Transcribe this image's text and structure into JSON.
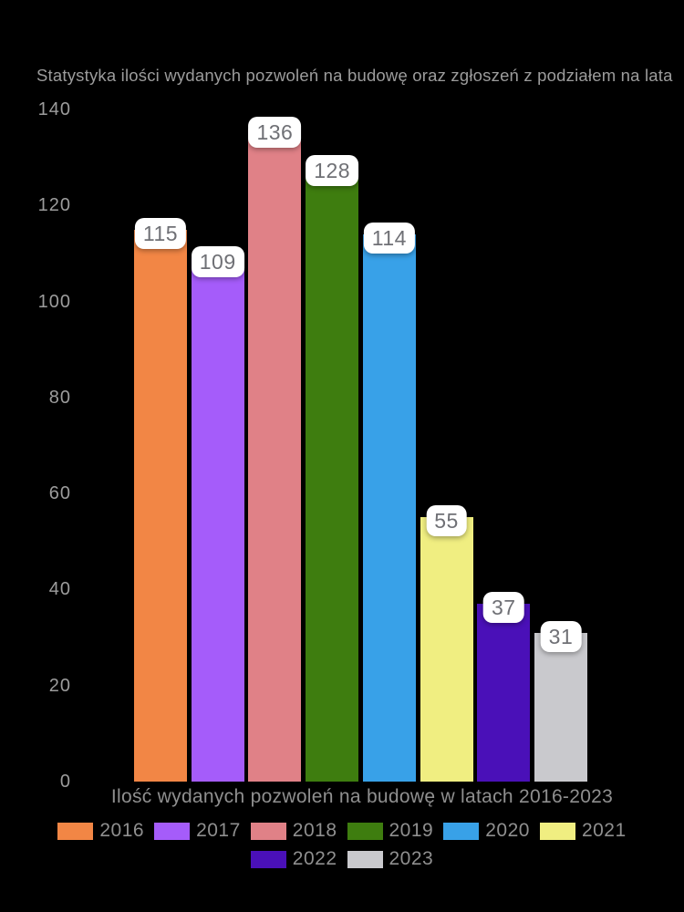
{
  "title": "Statystyka ilości wydanych pozwoleń na budowę oraz zgłoszeń z podziałem na lata",
  "colors": {
    "background": "#000000",
    "title_text": "#9c9c9c",
    "tick_text": "#9c9c9c",
    "axis_label_text": "#8f8f8f",
    "legend_text": "#8f8f8f",
    "value_chip_bg": "#ffffff",
    "value_chip_text": "#6f7075"
  },
  "chart_data": {
    "type": "bar",
    "title": "Statystyka ilości wydanych pozwoleń na budowę oraz zgłoszeń z podziałem na lata",
    "xlabel": "Ilość wydanych pozwoleń na budowę w latach 2016-2023",
    "ylabel": "",
    "categories": [
      "2016",
      "2017",
      "2018",
      "2019",
      "2020",
      "2021",
      "2022",
      "2023"
    ],
    "values": [
      115,
      109,
      136,
      128,
      114,
      55,
      37,
      31
    ],
    "colors": [
      "#f28645",
      "#a55cfa",
      "#e08187",
      "#3e7d0f",
      "#38a1e8",
      "#f0ee81",
      "#4a10b8",
      "#c9c9cd"
    ],
    "yticks": [
      0,
      20,
      40,
      60,
      80,
      100,
      120,
      140
    ],
    "ylim": [
      0,
      140
    ],
    "grid": false,
    "legend_position": "bottom",
    "legend_rows": [
      [
        "2016",
        "2017",
        "2018",
        "2019",
        "2020",
        "2021"
      ],
      [
        "2022",
        "2023"
      ]
    ]
  }
}
